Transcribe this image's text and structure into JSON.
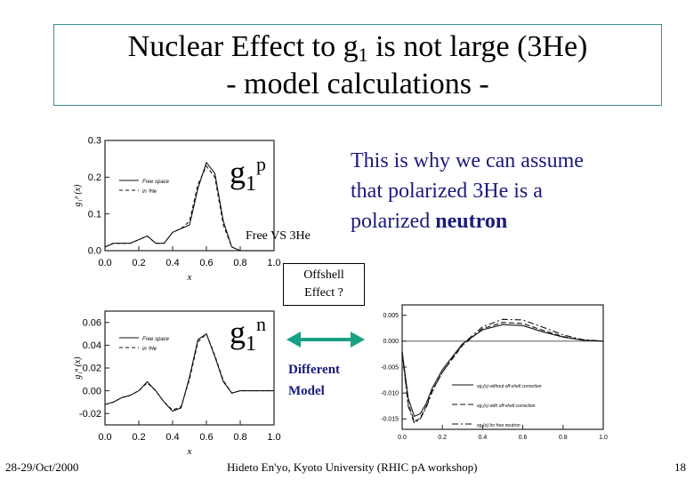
{
  "title": {
    "line1_prefix": "Nuclear Effect to g",
    "line1_sub": "1",
    "line1_suffix": " is not large (3He)",
    "line2": "- model calculations -"
  },
  "labels": {
    "g1p_main": "g",
    "g1p_sub": "1",
    "g1p_sup": "p",
    "g1n_main": "g",
    "g1n_sub": "1",
    "g1n_sup": "n",
    "free_vs": "Free VS 3He",
    "offshell_line1": "Offshell",
    "offshell_line2": "Effect ?",
    "different_line1": "Different",
    "different_line2": "Model"
  },
  "note": {
    "line1": "This is why we can assume",
    "line2": "that polarized  3He is a",
    "line3_prefix": "polarized ",
    "line3_bold": "neutron"
  },
  "footer": {
    "date": "28-29/Oct/2000",
    "credit": "Hideto En'yo, Kyoto University (RHIC pA workshop)",
    "page": "18"
  },
  "colors": {
    "text_blue": "#1a1a7e",
    "arrow": "#1aa085",
    "title_border": "#3d8d8d"
  },
  "chart_data": [
    {
      "type": "line",
      "xlabel": "x",
      "ylabel": "g₁ᵖ (x)",
      "xlim": [
        0.0,
        1.0
      ],
      "ylim": [
        0.0,
        0.3
      ],
      "xticks": [
        "0.0",
        "0.2",
        "0.4",
        "0.6",
        "0.8",
        "1.0"
      ],
      "yticks": [
        "0.0",
        "0.1",
        "0.2",
        "0.3"
      ],
      "legend": [
        "Free space",
        "in ³He"
      ],
      "x": [
        0.0,
        0.05,
        0.1,
        0.15,
        0.2,
        0.25,
        0.3,
        0.35,
        0.4,
        0.45,
        0.5,
        0.55,
        0.6,
        0.65,
        0.7,
        0.75,
        0.8,
        0.85,
        0.9,
        0.95,
        1.0
      ],
      "series": [
        {
          "name": "Free space",
          "values": [
            0.01,
            0.02,
            0.02,
            0.02,
            0.03,
            0.04,
            0.02,
            0.02,
            0.05,
            0.06,
            0.07,
            0.17,
            0.24,
            0.21,
            0.08,
            0.01,
            0.0,
            0.0,
            0.0,
            0.0,
            0.0
          ]
        },
        {
          "name": "in ³He",
          "values": [
            0.01,
            0.02,
            0.02,
            0.02,
            0.03,
            0.04,
            0.02,
            0.02,
            0.05,
            0.06,
            0.08,
            0.18,
            0.23,
            0.2,
            0.07,
            0.01,
            0.0,
            0.0,
            0.0,
            0.0,
            0.0
          ]
        }
      ]
    },
    {
      "type": "line",
      "xlabel": "x",
      "ylabel": "g₁ⁿ (x)",
      "xlim": [
        0.0,
        1.0
      ],
      "ylim": [
        -0.03,
        0.07
      ],
      "xticks": [
        "0.0",
        "0.2",
        "0.4",
        "0.6",
        "0.8",
        "1.0"
      ],
      "yticks": [
        "-0.02",
        "0.00",
        "0.02",
        "0.04",
        "0.06"
      ],
      "legend": [
        "Free space",
        "in ³He"
      ],
      "x": [
        0.0,
        0.05,
        0.1,
        0.15,
        0.2,
        0.25,
        0.3,
        0.35,
        0.4,
        0.45,
        0.5,
        0.55,
        0.6,
        0.65,
        0.7,
        0.75,
        0.8,
        0.85,
        0.9,
        0.95,
        1.0
      ],
      "series": [
        {
          "name": "Free space",
          "values": [
            -0.012,
            -0.01,
            -0.006,
            -0.004,
            0.0,
            0.008,
            0.0,
            -0.01,
            -0.018,
            -0.015,
            0.012,
            0.045,
            0.05,
            0.03,
            0.008,
            -0.002,
            0.0,
            0.0,
            0.0,
            0.0,
            0.0
          ]
        },
        {
          "name": "in ³He",
          "values": [
            -0.012,
            -0.01,
            -0.006,
            -0.004,
            0.0,
            0.007,
            0.0,
            -0.01,
            -0.017,
            -0.014,
            0.01,
            0.043,
            0.05,
            0.031,
            0.009,
            -0.002,
            0.0,
            0.0,
            0.0,
            0.0,
            0.0
          ]
        }
      ]
    },
    {
      "type": "line",
      "xlabel": "",
      "ylabel": "",
      "xlim": [
        0.0,
        1.0
      ],
      "ylim": [
        -0.017,
        0.007
      ],
      "xticks": [
        "0.0",
        "0.2",
        "0.4",
        "0.6",
        "0.8",
        "1.0"
      ],
      "yticks": [
        "-0.015",
        "-0.010",
        "-0.005",
        "0.000",
        "0.005"
      ],
      "legend": [
        "xg₂(x) without off-shell correction",
        "xg₂(x) with off-shell correction",
        "xg₂(x) for free neutron"
      ],
      "x": [
        0.0,
        0.03,
        0.06,
        0.09,
        0.12,
        0.15,
        0.2,
        0.3,
        0.4,
        0.5,
        0.6,
        0.7,
        0.8,
        0.9,
        1.0
      ],
      "series": [
        {
          "name": "xg₂(x) without off-shell correction",
          "values": [
            -0.002,
            -0.011,
            -0.0145,
            -0.014,
            -0.012,
            -0.009,
            -0.0055,
            -0.0005,
            0.0022,
            0.0032,
            0.003,
            0.0018,
            0.0008,
            0.0002,
            0.0
          ]
        },
        {
          "name": "xg₂(x) with off-shell correction",
          "values": [
            -0.002,
            -0.012,
            -0.0155,
            -0.0148,
            -0.0125,
            -0.0095,
            -0.006,
            -0.0008,
            0.0024,
            0.0036,
            0.0034,
            0.0021,
            0.0009,
            0.0002,
            0.0
          ]
        },
        {
          "name": "xg₂(x) for free neutron",
          "values": [
            -0.002,
            -0.0125,
            -0.0158,
            -0.015,
            -0.0128,
            -0.0097,
            -0.006,
            -0.0006,
            0.0028,
            0.0042,
            0.0041,
            0.0027,
            0.0012,
            0.0003,
            0.0
          ]
        }
      ]
    }
  ]
}
